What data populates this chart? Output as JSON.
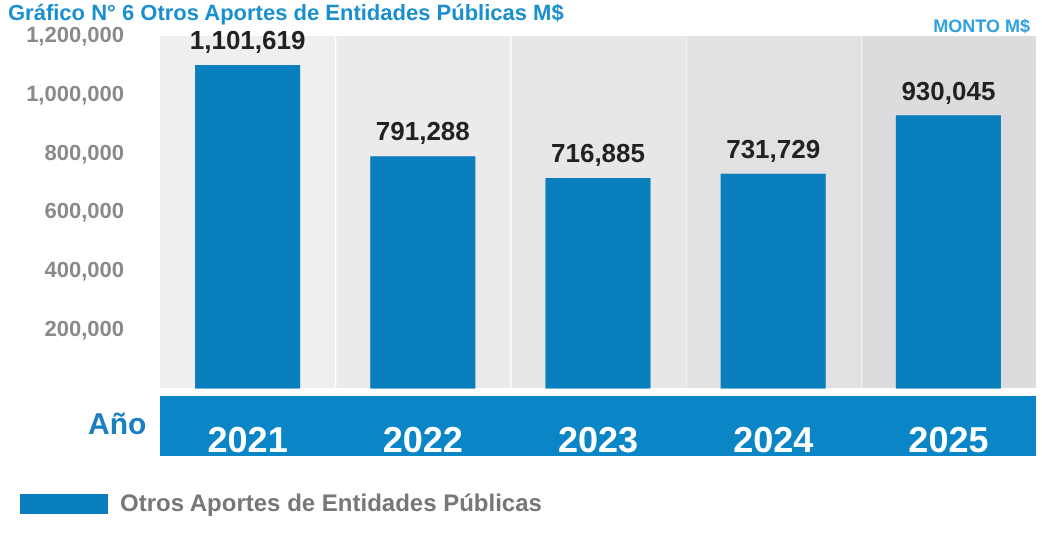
{
  "chart_data": {
    "type": "bar",
    "title": "Gráfico N° 6 Otros Aportes de Entidades Públicas M$",
    "ylabel": "MONTO M$",
    "xlabel": "Año",
    "categories": [
      "2021",
      "2022",
      "2023",
      "2024",
      "2025"
    ],
    "series": [
      {
        "name": "Otros Aportes de Entidades Públicas",
        "color": "#0a7fbd",
        "values": [
          1101619,
          791288,
          716885,
          731729,
          930045
        ],
        "value_labels": [
          "1,101,619",
          "791,288",
          "716,885",
          "731,729",
          "930,045"
        ]
      }
    ],
    "ylim": [
      0,
      1200000
    ],
    "yticks": [
      {
        "value": 200000,
        "label": "200,000"
      },
      {
        "value": 400000,
        "label": "400,000"
      },
      {
        "value": 600000,
        "label": "600,000"
      },
      {
        "value": 800000,
        "label": "800,000"
      },
      {
        "value": 1000000,
        "label": "1,000,000"
      },
      {
        "value": 1200000,
        "label": "1,200,000"
      }
    ],
    "legend": "bottom left",
    "grid": false
  }
}
